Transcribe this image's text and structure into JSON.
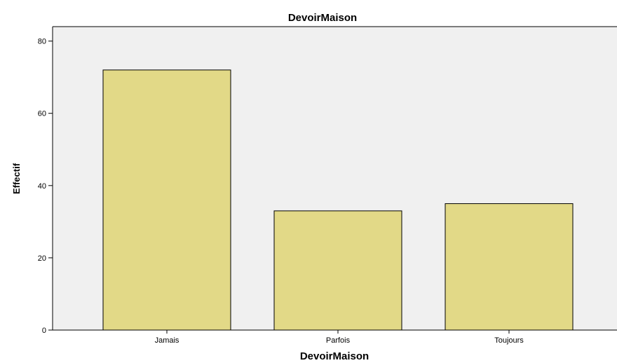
{
  "chart_data": {
    "type": "bar",
    "title": "DevoirMaison",
    "xlabel": "DevoirMaison",
    "ylabel": "Effectif",
    "categories": [
      "Jamais",
      "Parfois",
      "Toujours"
    ],
    "values": [
      72,
      33,
      35
    ],
    "ylim": [
      0,
      84
    ],
    "yticks": [
      "0",
      "20",
      "40",
      "60",
      "80"
    ],
    "grid": false,
    "legend": "none",
    "colors": {
      "bar_fill": "#e2d987",
      "bar_stroke": "#000000",
      "plot_background": "#f0f0f0"
    }
  }
}
